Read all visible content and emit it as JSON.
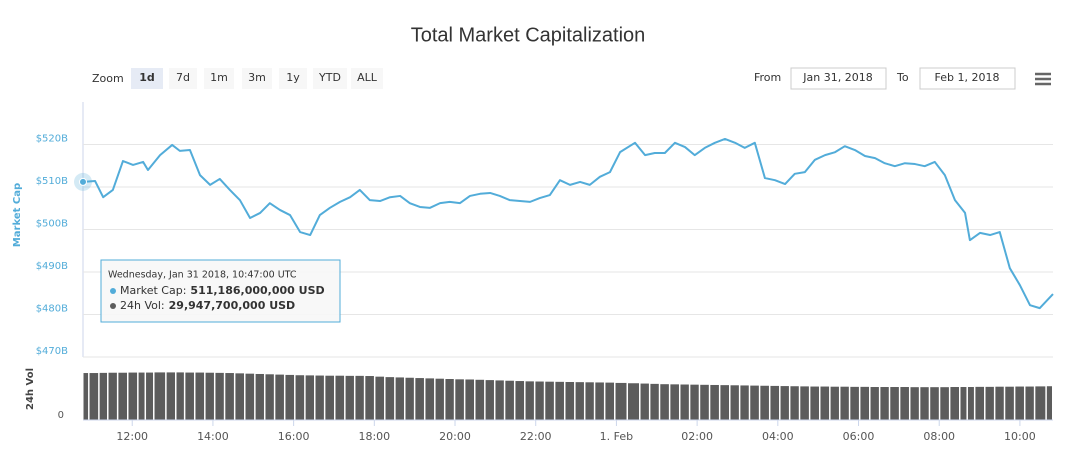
{
  "chart_data": {
    "type": "line",
    "title": "Total Market Capitalization",
    "ylabel": "Market Cap",
    "y2label": "24h Vol",
    "x": [
      10.78,
      11.08,
      11.28,
      11.52,
      11.77,
      12.02,
      12.27,
      12.39,
      12.69,
      12.99,
      13.18,
      13.43,
      13.68,
      13.93,
      14.17,
      14.42,
      14.67,
      14.92,
      15.17,
      15.41,
      15.66,
      15.91,
      16.16,
      16.41,
      16.65,
      16.9,
      17.15,
      17.4,
      17.64,
      17.89,
      18.14,
      18.39,
      18.64,
      18.88,
      19.13,
      19.38,
      19.63,
      19.87,
      20.12,
      20.37,
      20.62,
      20.87,
      21.11,
      21.36,
      21.61,
      21.86,
      22.1,
      22.35,
      22.6,
      22.85,
      23.1,
      23.34,
      23.59,
      23.84,
      24.09,
      24.46,
      24.71,
      24.95,
      25.2,
      25.45,
      25.7,
      25.94,
      26.19,
      26.44,
      26.69,
      26.94,
      27.18,
      27.43,
      27.68,
      27.93,
      28.18,
      28.42,
      28.67,
      28.92,
      29.17,
      29.42,
      29.66,
      29.91,
      30.16,
      30.41,
      30.65,
      30.9,
      31.15,
      31.4,
      31.64,
      31.89,
      32.14,
      32.39,
      32.64,
      32.76,
      33.01,
      33.26,
      33.5,
      33.75,
      34.0,
      34.25,
      34.49,
      34.82
    ],
    "xlim": [
      10.78,
      34.82
    ],
    "xticks": [
      {
        "value": 12,
        "label": "12:00"
      },
      {
        "value": 14,
        "label": "14:00"
      },
      {
        "value": 16,
        "label": "16:00"
      },
      {
        "value": 18,
        "label": "18:00"
      },
      {
        "value": 20,
        "label": "20:00"
      },
      {
        "value": 22,
        "label": "22:00"
      },
      {
        "value": 24,
        "label": "1. Feb"
      },
      {
        "value": 26,
        "label": "02:00"
      },
      {
        "value": 28,
        "label": "04:00"
      },
      {
        "value": 30,
        "label": "06:00"
      },
      {
        "value": 32,
        "label": "08:00"
      },
      {
        "value": 34,
        "label": "10:00"
      }
    ],
    "ylim": [
      470,
      530
    ],
    "yticks": [
      {
        "value": 470,
        "label": "$470B"
      },
      {
        "value": 480,
        "label": "$480B"
      },
      {
        "value": 490,
        "label": "$490B"
      },
      {
        "value": 500,
        "label": "$500B"
      },
      {
        "value": 510,
        "label": "$510B"
      },
      {
        "value": 520,
        "label": "$520B"
      }
    ],
    "y2lim": [
      0,
      38.2
    ],
    "y2ticks": [
      0
    ],
    "grid": true,
    "series": [
      {
        "name": "Market Cap",
        "color": "#52acd9",
        "values": [
          511.2,
          511.4,
          507.6,
          509.3,
          516.1,
          515.2,
          515.9,
          514.0,
          517.5,
          519.9,
          518.5,
          518.7,
          512.8,
          510.5,
          511.9,
          509.3,
          506.9,
          502.7,
          503.9,
          506.2,
          504.6,
          503.4,
          499.4,
          498.7,
          503.4,
          505.1,
          506.5,
          507.6,
          509.3,
          506.9,
          506.7,
          507.6,
          507.9,
          506.2,
          505.3,
          505.1,
          506.2,
          506.5,
          506.2,
          507.9,
          508.4,
          508.6,
          507.9,
          506.9,
          506.7,
          506.5,
          507.4,
          508.1,
          511.6,
          510.5,
          511.2,
          510.5,
          512.4,
          513.5,
          518.2,
          520.4,
          517.5,
          518.0,
          518.0,
          520.4,
          519.4,
          517.5,
          519.2,
          520.4,
          521.3,
          520.4,
          519.2,
          520.4,
          512.1,
          511.6,
          510.7,
          513.1,
          513.5,
          516.4,
          517.5,
          518.2,
          519.6,
          518.7,
          517.3,
          516.8,
          515.6,
          514.9,
          515.6,
          515.4,
          514.9,
          515.9,
          512.8,
          506.9,
          503.9,
          497.5,
          499.2,
          498.7,
          499.4,
          490.9,
          486.9,
          482.2,
          481.5,
          484.8
        ]
      },
      {
        "name": "24h Vol",
        "color": "#5c5c5c",
        "type": "bar",
        "axis": "y2",
        "values": [
          29.9,
          29.9,
          30.0,
          30.1,
          30.1,
          30.2,
          30.2,
          30.2,
          30.3,
          30.3,
          30.3,
          30.2,
          30.2,
          30.1,
          30.0,
          29.9,
          29.7,
          29.5,
          29.3,
          29.1,
          28.9,
          28.7,
          28.5,
          28.4,
          28.3,
          28.2,
          28.2,
          28.1,
          28.1,
          28.0,
          27.6,
          27.3,
          27.1,
          26.9,
          26.7,
          26.5,
          26.3,
          26.1,
          25.9,
          25.8,
          25.6,
          25.4,
          25.2,
          25.0,
          24.8,
          24.6,
          24.5,
          24.4,
          24.3,
          24.2,
          24.1,
          24.0,
          23.9,
          23.8,
          23.6,
          23.4,
          23.2,
          23.0,
          22.8,
          22.7,
          22.6,
          22.5,
          22.4,
          22.3,
          22.2,
          22.1,
          22.0,
          21.9,
          21.8,
          21.7,
          21.6,
          21.5,
          21.4,
          21.3,
          21.3,
          21.2,
          21.2,
          21.1,
          21.1,
          21.0,
          21.0,
          21.0,
          21.0,
          20.9,
          20.9,
          20.9,
          20.9,
          21.0,
          21.0,
          21.0,
          21.1,
          21.1,
          21.2,
          21.2,
          21.3,
          21.3,
          21.4,
          21.5
        ]
      }
    ],
    "tooltip": {
      "header": "Wednesday, Jan 31 2018, 10:47:00 UTC",
      "items": [
        {
          "label": "Market Cap:",
          "value": "511,186,000,000 USD"
        },
        {
          "label": "24h Vol:",
          "value": "29,947,700,000 USD"
        }
      ]
    }
  },
  "controls": {
    "zoom_label": "Zoom",
    "zoom_options": [
      "1d",
      "7d",
      "1m",
      "3m",
      "1y",
      "YTD",
      "ALL"
    ],
    "selected": "1d",
    "from_label": "From",
    "from": "Jan 31, 2018",
    "to_label": "To",
    "to": "Feb 1, 2018"
  }
}
